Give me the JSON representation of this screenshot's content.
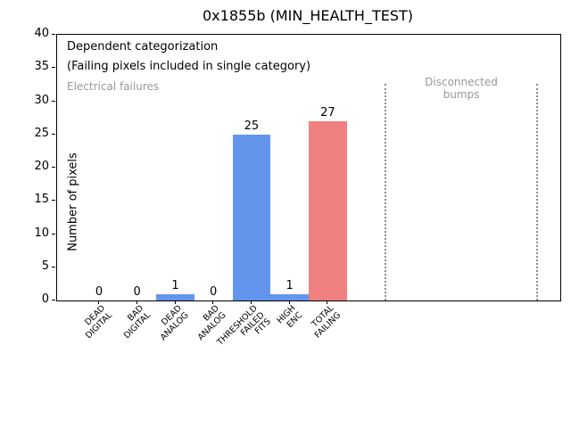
{
  "chart_data": {
    "type": "bar",
    "title": "0x1855b (MIN_HEALTH_TEST)",
    "ylabel": "Number of pixels",
    "xlabel": "",
    "ylim": [
      0,
      40
    ],
    "yticks": [
      0,
      5,
      10,
      15,
      20,
      25,
      30,
      35,
      40
    ],
    "grid": false,
    "legend_position": "none",
    "categories": [
      "DEAD\nDIGITAL",
      "BAD\nDIGITAL",
      "DEAD\nANALOG",
      "BAD\nANALOG",
      "THRESHOLD\nFAILED\nFITS",
      "HIGH\nENC",
      "TOTAL\nFAILING"
    ],
    "values": [
      0,
      0,
      1,
      0,
      25,
      1,
      27
    ],
    "bar_value_labels": [
      "0",
      "0",
      "1",
      "0",
      "25",
      "1",
      "27"
    ],
    "bar_colors": [
      "#6495ED",
      "#6495ED",
      "#6495ED",
      "#6495ED",
      "#6495ED",
      "#6495ED",
      "#F08080"
    ],
    "annotations": {
      "dependent": "Dependent categorization",
      "failing_note": "(Failing pixels included in single category)",
      "electrical": "Electrical failures",
      "disconnected": "Disconnected\nbumps"
    },
    "separators": {
      "style": "dotted",
      "color": "#8c8c8c",
      "x_positions_units": [
        7.5,
        11.5
      ],
      "ymax_units": 32.6
    },
    "colors": {
      "bar_blue": "#6495ED",
      "bar_red": "#F08080",
      "gray_text": "#999999",
      "axis": "#000000"
    }
  }
}
